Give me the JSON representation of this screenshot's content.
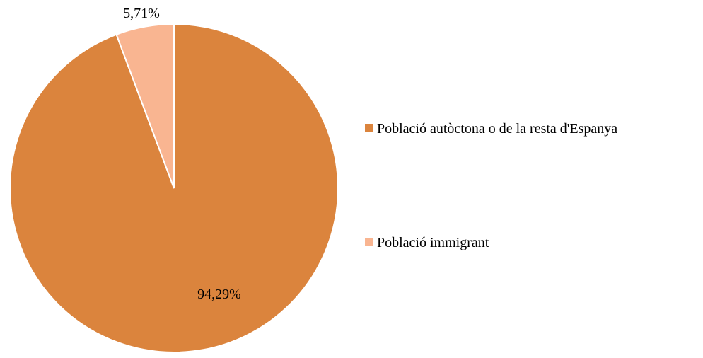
{
  "chart_data": {
    "type": "pie",
    "title": "",
    "slices": [
      {
        "name": "Població autòctona o de la resta d'Espanya",
        "value": 94.29,
        "label": "94,29%",
        "color": "#DB843D"
      },
      {
        "name": "Població immigrant",
        "value": 5.71,
        "label": "5,71%",
        "color": "#F9B591"
      }
    ],
    "legend_position": "right"
  }
}
